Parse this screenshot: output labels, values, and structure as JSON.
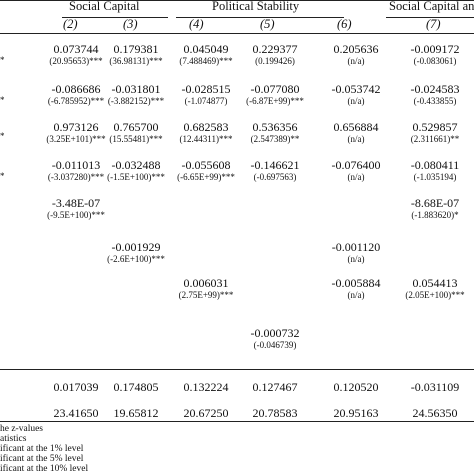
{
  "header": {
    "groups": [
      {
        "label": "Social Capital"
      },
      {
        "label": "Political Stability"
      },
      {
        "label": "Social Capital and"
      }
    ],
    "col_numbers": [
      "(2)",
      "(3)",
      "(4)",
      "(5)",
      "(6)",
      "(7)"
    ]
  },
  "left_marks": [
    "*",
    "*",
    "*",
    "*"
  ],
  "rows": [
    {
      "cells": [
        {
          "c": "0.073744",
          "z": "(20.95653)***"
        },
        {
          "c": "0.179381",
          "z": "(36.98131)***"
        },
        {
          "c": "0.045049",
          "z": "(7.488469)***"
        },
        {
          "c": "0.229377",
          "z": "(0.199426)"
        },
        {
          "c": "0.205636",
          "z": "(n/a)"
        },
        {
          "c": "-0.009172",
          "z": "(-0.083061)"
        }
      ]
    },
    {
      "cells": [
        {
          "c": "-0.086686",
          "z": "(-6.785952)***"
        },
        {
          "c": "-0.031801",
          "z": "(-3.882152)***"
        },
        {
          "c": "-0.028515",
          "z": "(-1.074877)"
        },
        {
          "c": "-0.077080",
          "z": "(-6.87E+99)***"
        },
        {
          "c": "-0.053742",
          "z": "(n/a)"
        },
        {
          "c": "-0.024583",
          "z": "(-0.433855)"
        }
      ]
    },
    {
      "cells": [
        {
          "c": "0.973126",
          "z": "(3.25E+101)***"
        },
        {
          "c": "0.765700",
          "z": "(15.55481)***"
        },
        {
          "c": "0.682583",
          "z": "(12.44311)***"
        },
        {
          "c": "0.536356",
          "z": "(2.547389)**"
        },
        {
          "c": "0.656884",
          "z": "(n/a)"
        },
        {
          "c": "0.529857",
          "z": "(2.311661)**"
        }
      ]
    },
    {
      "cells": [
        {
          "c": "-0.011013",
          "z": "(-3.037280)***"
        },
        {
          "c": "-0.032488",
          "z": "(-1.5E+100)***"
        },
        {
          "c": "-0.055608",
          "z": "(-6.65E+99)***"
        },
        {
          "c": "-0.146621",
          "z": "(-0.697563)"
        },
        {
          "c": "-0.076400",
          "z": "(n/a)"
        },
        {
          "c": "-0.080411",
          "z": "(-1.035194)"
        }
      ]
    },
    {
      "cells": [
        {
          "c": "-3.48E-07",
          "z": "(-9.5E+100)***"
        },
        null,
        null,
        null,
        null,
        {
          "c": "-8.68E-07",
          "z": "(-1.883620)*"
        }
      ]
    },
    {
      "cells": [
        null,
        {
          "c": "-0.001929",
          "z": "(-2.6E+100)***"
        },
        null,
        null,
        {
          "c": "-0.001120",
          "z": "(n/a)"
        },
        null
      ]
    },
    {
      "cells": [
        null,
        null,
        {
          "c": "0.006031",
          "z": "(2.75E+99)***"
        },
        null,
        {
          "c": "-0.005884",
          "z": "(n/a)"
        },
        {
          "c": "0.054413",
          "z": "(2.05E+100)***"
        }
      ]
    },
    {
      "cells": [
        null,
        null,
        null,
        {
          "c": "-0.000732",
          "z": "(-0.046739)"
        },
        null,
        null
      ]
    }
  ],
  "stats": [
    [
      "0.017039",
      "0.174805",
      "0.132224",
      "0.127467",
      "0.120520",
      "-0.031109"
    ],
    [
      "23.41650",
      "19.65812",
      "20.67250",
      "20.78583",
      "20.95163",
      "24.56350"
    ]
  ],
  "notes": [
    "he z-values",
    "atistics",
    "ificant at the 1% level",
    "ificant at the 5% level",
    "ificant at the 10% level"
  ]
}
